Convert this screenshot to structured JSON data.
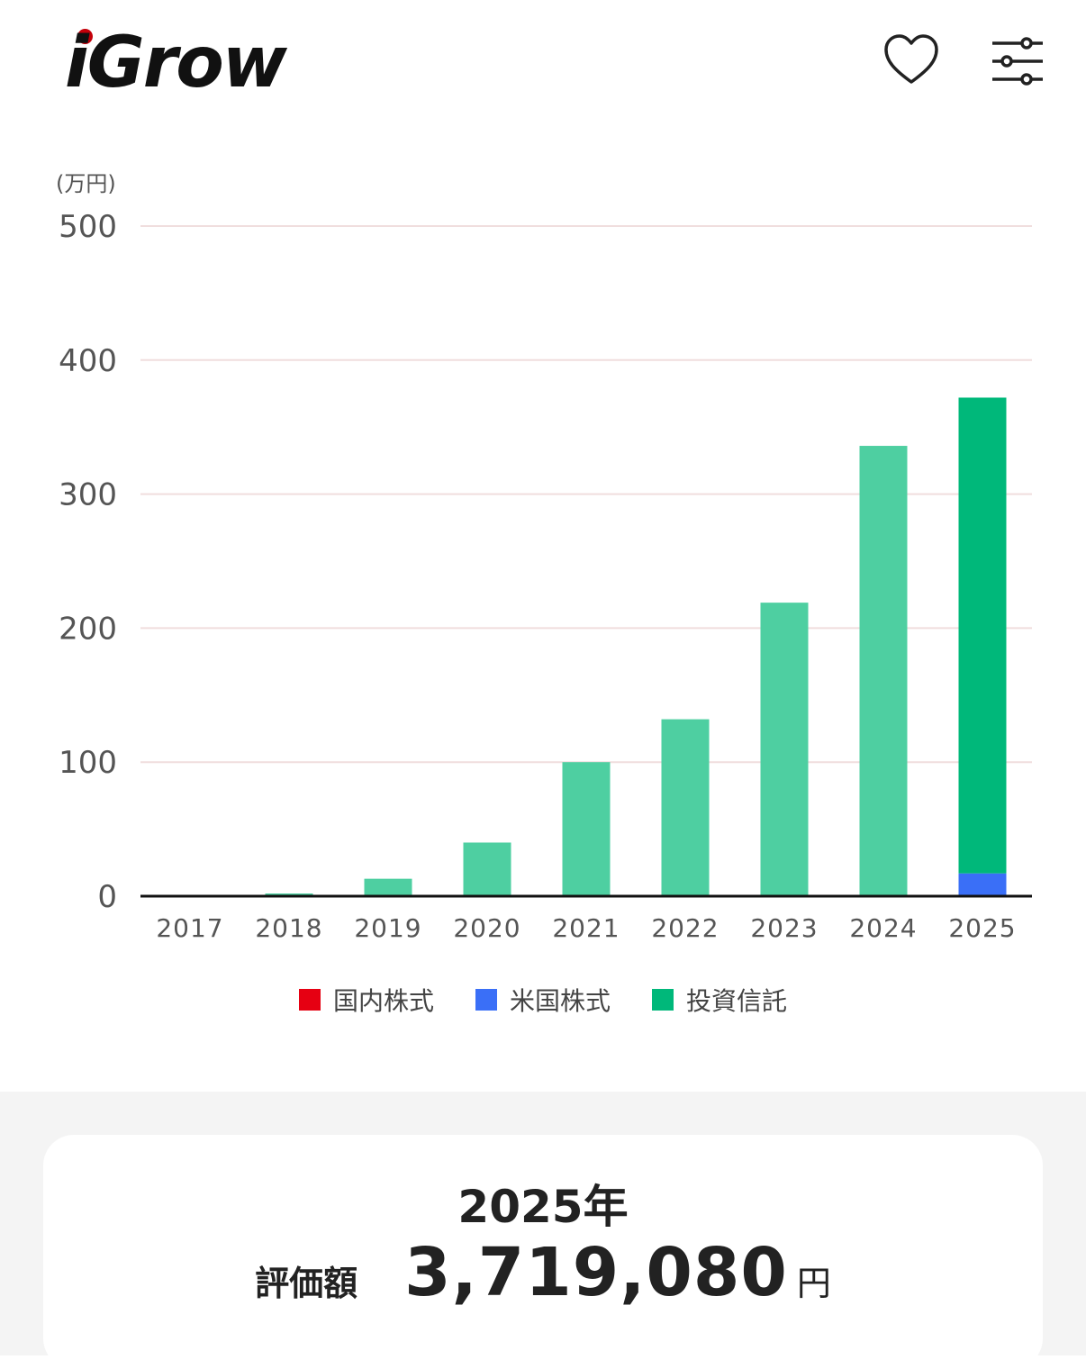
{
  "header": {
    "logo_text": "iGrow",
    "favorite_icon": "heart-icon",
    "settings_icon": "sliders-icon"
  },
  "chart_data": {
    "type": "bar",
    "stacked": true,
    "unit_label": "(万円)",
    "categories": [
      "2017",
      "2018",
      "2019",
      "2020",
      "2021",
      "2022",
      "2023",
      "2024",
      "2025"
    ],
    "ylim": [
      0,
      500
    ],
    "yticks": [
      0,
      100,
      200,
      300,
      400,
      500
    ],
    "grid": true,
    "series": [
      {
        "name": "国内株式",
        "color": "#e60012",
        "values": [
          0,
          0,
          0,
          0,
          0,
          0,
          0,
          0,
          0
        ]
      },
      {
        "name": "米国株式",
        "color": "#3a6ff7",
        "values": [
          0,
          0,
          0,
          0,
          0,
          0,
          0,
          0,
          17
        ]
      },
      {
        "name": "投資信託",
        "color": "#00b87a",
        "values": [
          0,
          2,
          13,
          40,
          100,
          132,
          219,
          336,
          355
        ]
      }
    ],
    "highlight_index": 8,
    "faded_color": "#4ecfa1",
    "legend_position": "bottom"
  },
  "summary": {
    "year_label": "2025年",
    "value_label": "評価額",
    "value": "3,719,080",
    "unit": "円"
  }
}
